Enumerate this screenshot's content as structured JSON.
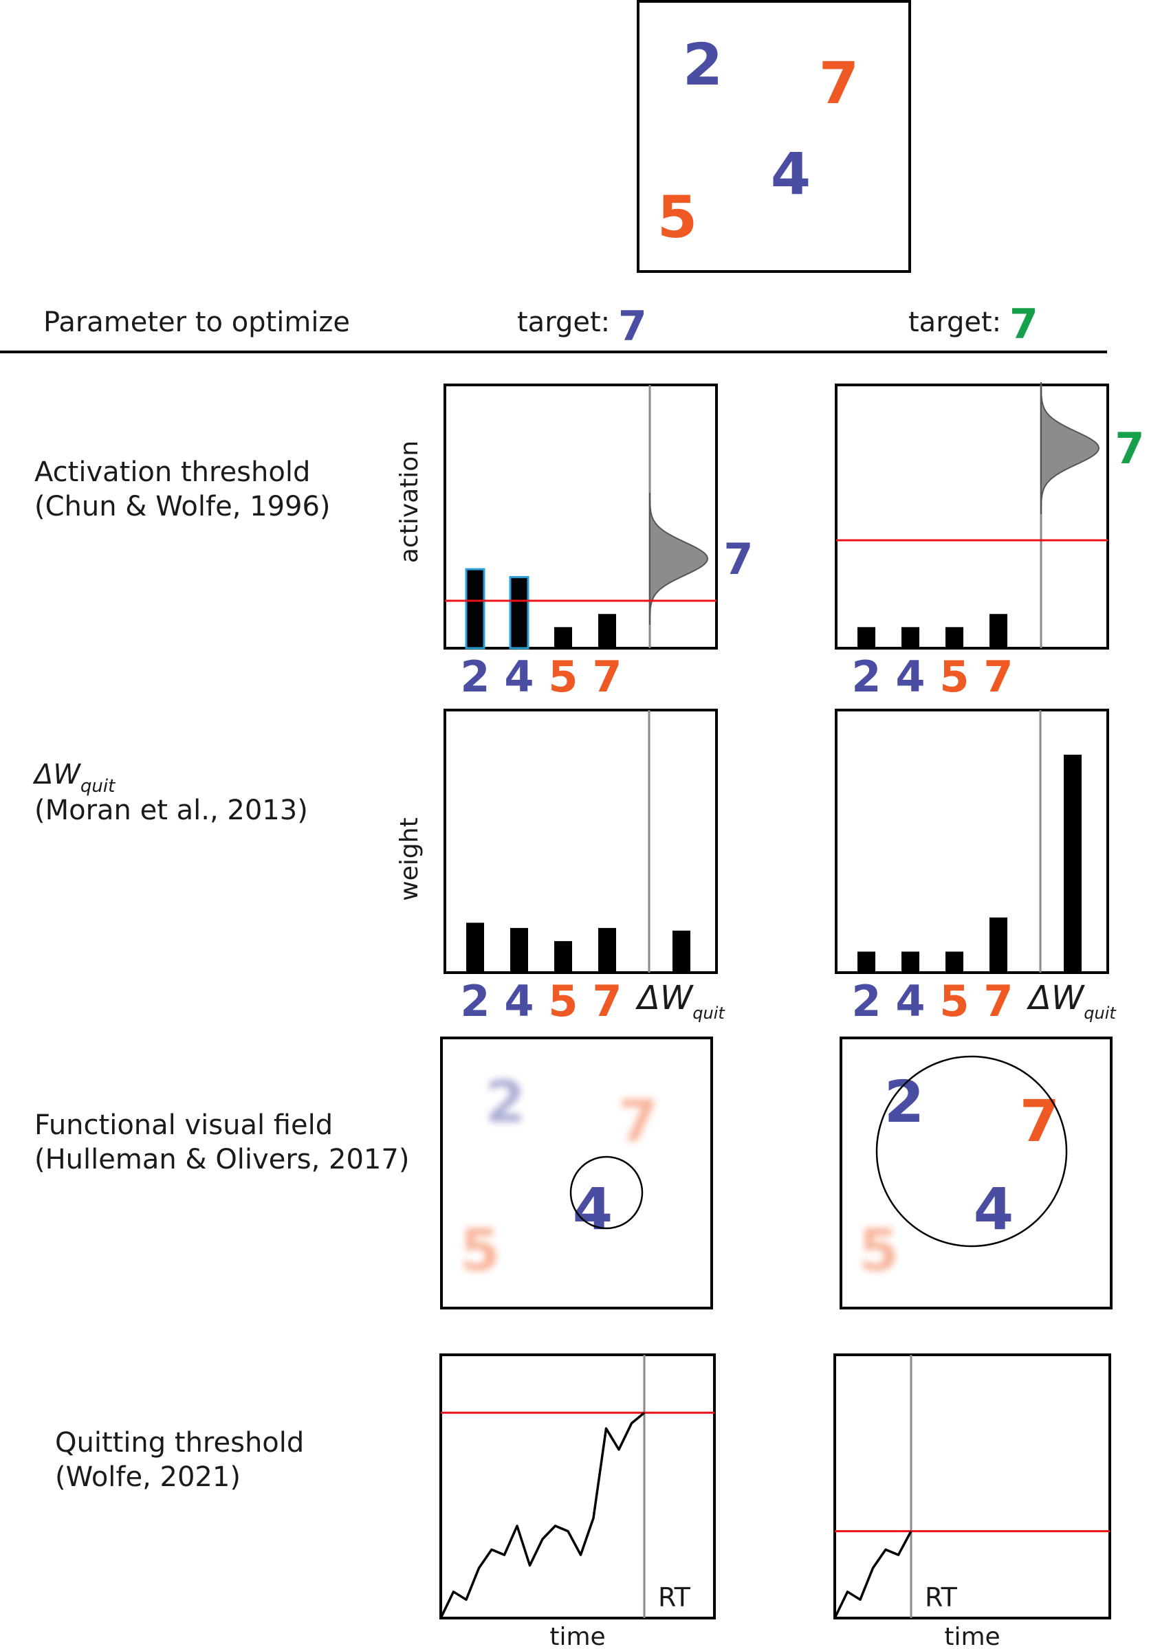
{
  "colors": {
    "blue": "#4a4ea3",
    "orange": "#ef5a24",
    "green": "#16a04a",
    "red": "#e8141a",
    "gray": "#8a8a8a",
    "cyan_outline": "#2a9fd8"
  },
  "display": {
    "items": [
      {
        "digit": "2",
        "color": "blue"
      },
      {
        "digit": "7",
        "color": "orange"
      },
      {
        "digit": "4",
        "color": "blue"
      },
      {
        "digit": "5",
        "color": "orange"
      }
    ]
  },
  "header": {
    "parameter_label": "Parameter to optimize",
    "col1_prefix": "target:",
    "col1_digit": "7",
    "col2_prefix": "target:",
    "col2_digit": "7"
  },
  "rows": [
    {
      "title": "Activation threshold",
      "cite": "(Chun & Wolfe, 1996)",
      "ylabel": "activation"
    },
    {
      "title_sym": "ΔW",
      "title_sub": "quit",
      "cite": "(Moran et al., 2013)",
      "ylabel": "weight"
    },
    {
      "title": "Functional visual field",
      "cite": "(Hulleman & Olivers, 2017)"
    },
    {
      "title": "Quitting threshold",
      "cite": "(Wolfe, 2021)",
      "xlabel": "time",
      "rt_label": "RT"
    }
  ],
  "xcats": [
    "2",
    "4",
    "5",
    "7"
  ],
  "dw_label": {
    "sym": "ΔW",
    "sub": "quit"
  },
  "chart_data": [
    {
      "panel": "activation-left",
      "type": "bar",
      "categories": [
        "2",
        "4",
        "5",
        "7"
      ],
      "values": [
        0.3,
        0.27,
        0.08,
        0.13
      ],
      "threshold": 0.18,
      "target_peak": 0.34,
      "target_label": "7"
    },
    {
      "panel": "activation-right",
      "type": "bar",
      "categories": [
        "2",
        "4",
        "5",
        "7"
      ],
      "values": [
        0.08,
        0.08,
        0.08,
        0.13
      ],
      "threshold": 0.41,
      "target_peak": 0.76,
      "target_label": "7"
    },
    {
      "panel": "weight-left",
      "type": "bar",
      "categories": [
        "2",
        "4",
        "5",
        "7",
        "ΔW_quit"
      ],
      "values": [
        0.19,
        0.17,
        0.12,
        0.17,
        0.16
      ]
    },
    {
      "panel": "weight-right",
      "type": "bar",
      "categories": [
        "2",
        "4",
        "5",
        "7",
        "ΔW_quit"
      ],
      "values": [
        0.08,
        0.08,
        0.08,
        0.21,
        0.83
      ]
    },
    {
      "panel": "quit-left",
      "type": "line",
      "x": [
        0,
        1,
        2,
        3,
        4,
        5,
        6,
        7,
        8,
        9,
        10,
        11,
        12,
        13,
        14,
        15,
        16
      ],
      "y": [
        0.0,
        0.1,
        0.07,
        0.19,
        0.26,
        0.24,
        0.35,
        0.2,
        0.3,
        0.35,
        0.33,
        0.24,
        0.38,
        0.72,
        0.64,
        0.74,
        0.78
      ],
      "threshold": 0.78
    },
    {
      "panel": "quit-right",
      "type": "line",
      "x": [
        0,
        1,
        2,
        3,
        4,
        5,
        6
      ],
      "y": [
        0.0,
        0.1,
        0.07,
        0.19,
        0.26,
        0.24,
        0.33
      ],
      "threshold": 0.33
    }
  ]
}
